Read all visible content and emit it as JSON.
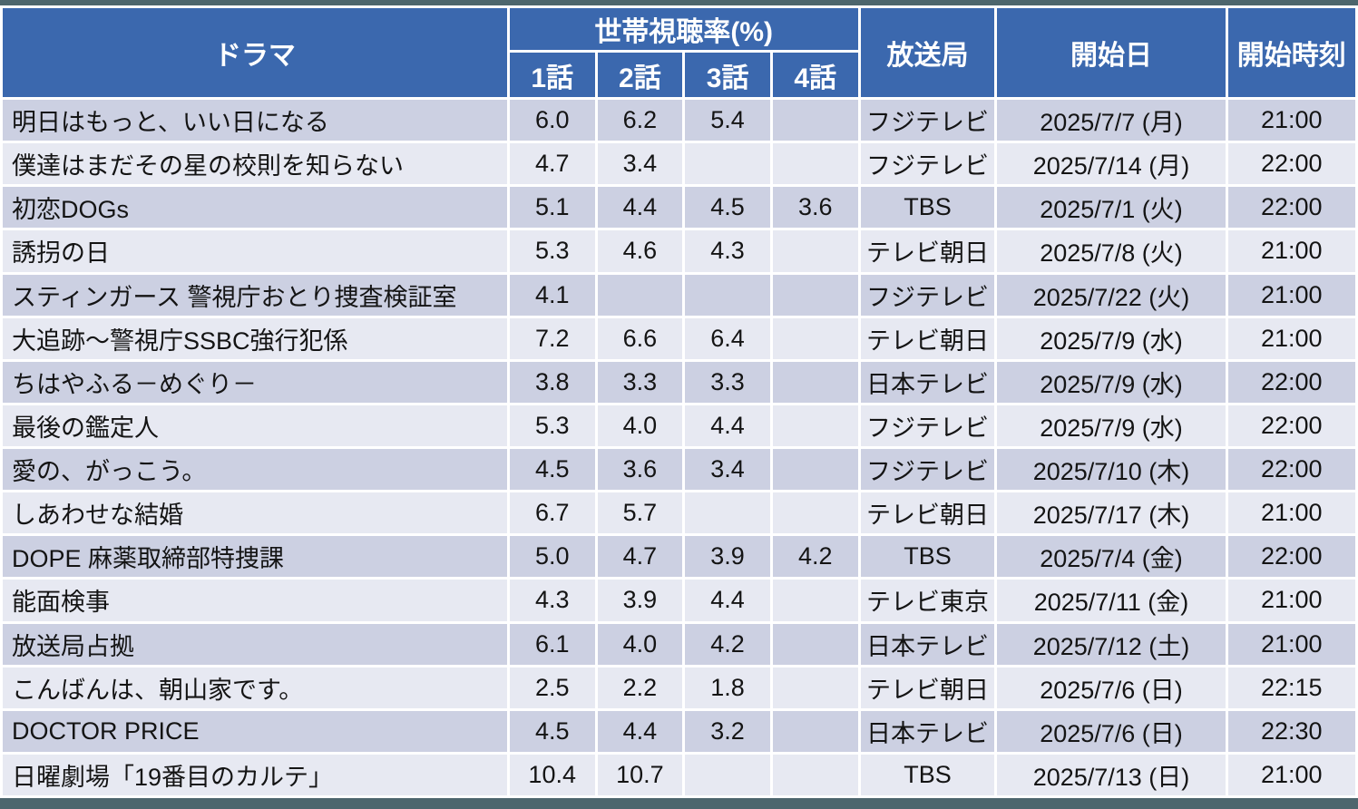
{
  "table": {
    "header": {
      "drama": "ドラマ",
      "ratings_group": "世帯視聴率(%)",
      "episodes": [
        "1話",
        "2話",
        "3話",
        "4話"
      ],
      "station": "放送局",
      "start_date": "開始日",
      "start_time": "開始時刻"
    },
    "rows": [
      {
        "title": "明日はもっと、いい日になる",
        "ep1": "6.0",
        "ep2": "6.2",
        "ep3": "5.4",
        "ep4": "",
        "station": "フジテレビ",
        "date": "2025/7/7 (月)",
        "time": "21:00"
      },
      {
        "title": "僕達はまだその星の校則を知らない",
        "ep1": "4.7",
        "ep2": "3.4",
        "ep3": "",
        "ep4": "",
        "station": "フジテレビ",
        "date": "2025/7/14 (月)",
        "time": "22:00"
      },
      {
        "title": "初恋DOGs",
        "ep1": "5.1",
        "ep2": "4.4",
        "ep3": "4.5",
        "ep4": "3.6",
        "station": "TBS",
        "date": "2025/7/1 (火)",
        "time": "22:00"
      },
      {
        "title": "誘拐の日",
        "ep1": "5.3",
        "ep2": "4.6",
        "ep3": "4.3",
        "ep4": "",
        "station": "テレビ朝日",
        "date": "2025/7/8 (火)",
        "time": "21:00"
      },
      {
        "title": "スティンガース 警視庁おとり捜査検証室",
        "ep1": "4.1",
        "ep2": "",
        "ep3": "",
        "ep4": "",
        "station": "フジテレビ",
        "date": "2025/7/22 (火)",
        "time": "21:00"
      },
      {
        "title": "大追跡～警視庁SSBC強行犯係",
        "ep1": "7.2",
        "ep2": "6.6",
        "ep3": "6.4",
        "ep4": "",
        "station": "テレビ朝日",
        "date": "2025/7/9 (水)",
        "time": "21:00"
      },
      {
        "title": "ちはやふる－めぐり－",
        "ep1": "3.8",
        "ep2": "3.3",
        "ep3": "3.3",
        "ep4": "",
        "station": "日本テレビ",
        "date": "2025/7/9 (水)",
        "time": "22:00"
      },
      {
        "title": "最後の鑑定人",
        "ep1": "5.3",
        "ep2": "4.0",
        "ep3": "4.4",
        "ep4": "",
        "station": "フジテレビ",
        "date": "2025/7/9 (水)",
        "time": "22:00"
      },
      {
        "title": "愛の、がっこう。",
        "ep1": "4.5",
        "ep2": "3.6",
        "ep3": "3.4",
        "ep4": "",
        "station": "フジテレビ",
        "date": "2025/7/10 (木)",
        "time": "22:00"
      },
      {
        "title": "しあわせな結婚",
        "ep1": "6.7",
        "ep2": "5.7",
        "ep3": "",
        "ep4": "",
        "station": "テレビ朝日",
        "date": "2025/7/17 (木)",
        "time": "21:00"
      },
      {
        "title": "DOPE 麻薬取締部特捜課",
        "ep1": "5.0",
        "ep2": "4.7",
        "ep3": "3.9",
        "ep4": "4.2",
        "station": "TBS",
        "date": "2025/7/4 (金)",
        "time": "22:00"
      },
      {
        "title": "能面検事",
        "ep1": "4.3",
        "ep2": "3.9",
        "ep3": "4.4",
        "ep4": "",
        "station": "テレビ東京",
        "date": "2025/7/11 (金)",
        "time": "21:00"
      },
      {
        "title": "放送局占拠",
        "ep1": "6.1",
        "ep2": "4.0",
        "ep3": "4.2",
        "ep4": "",
        "station": "日本テレビ",
        "date": "2025/7/12 (土)",
        "time": "21:00"
      },
      {
        "title": "こんばんは、朝山家です。",
        "ep1": "2.5",
        "ep2": "2.2",
        "ep3": "1.8",
        "ep4": "",
        "station": "テレビ朝日",
        "date": "2025/7/6 (日)",
        "time": "22:15"
      },
      {
        "title": "DOCTOR PRICE",
        "ep1": "4.5",
        "ep2": "4.4",
        "ep3": "3.2",
        "ep4": "",
        "station": "日本テレビ",
        "date": "2025/7/6 (日)",
        "time": "22:30"
      },
      {
        "title": "日曜劇場「19番目のカルテ」",
        "ep1": "10.4",
        "ep2": "10.7",
        "ep3": "",
        "ep4": "",
        "station": "TBS",
        "date": "2025/7/13 (日)",
        "time": "21:00"
      }
    ]
  },
  "colors": {
    "header_bg": "#3b68ae",
    "row_odd": "#ccd0e2",
    "row_even": "#e7e9f2",
    "border": "#ffffff",
    "frame": "#4d666d",
    "header_text": "#ffffff",
    "body_text": "#141414"
  }
}
